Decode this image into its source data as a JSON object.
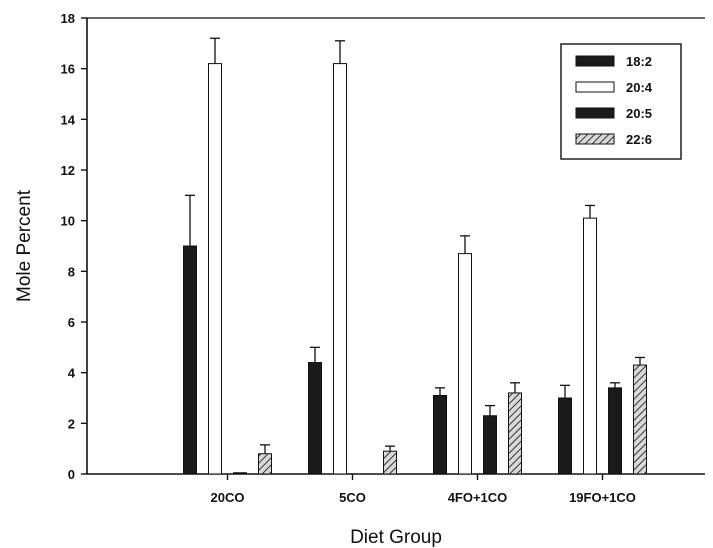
{
  "chart_data": {
    "type": "bar",
    "title": "",
    "xlabel": "Diet Group",
    "ylabel": "Mole Percent",
    "ylim": [
      0,
      18
    ],
    "yticks": [
      0,
      2,
      4,
      6,
      8,
      10,
      12,
      14,
      16,
      18
    ],
    "categories": [
      "20CO",
      "5CO",
      "4FO+1CO",
      "19FO+1CO"
    ],
    "series": [
      {
        "name": "18:2",
        "values": [
          9.0,
          4.4,
          3.1,
          3.0
        ],
        "errors": [
          2.0,
          0.6,
          0.3,
          0.5
        ],
        "fill": "#1a1a1a",
        "pattern": "solid-dark"
      },
      {
        "name": "20:4",
        "values": [
          16.2,
          16.2,
          8.7,
          10.1
        ],
        "errors": [
          1.0,
          0.9,
          0.7,
          0.5
        ],
        "fill": "#ffffff",
        "pattern": "open"
      },
      {
        "name": "20:5",
        "values": [
          0.05,
          0.0,
          2.3,
          3.4
        ],
        "errors": [
          0.0,
          0.0,
          0.4,
          0.2
        ],
        "fill": "#1a1a1a",
        "pattern": "solid-dark"
      },
      {
        "name": "22:6",
        "values": [
          0.8,
          0.9,
          3.2,
          4.3
        ],
        "errors": [
          0.35,
          0.2,
          0.4,
          0.3
        ],
        "fill": "#8a8a8a",
        "pattern": "hatched"
      }
    ],
    "legend_position": "top-right",
    "grid": false,
    "error_bars": "upper"
  }
}
